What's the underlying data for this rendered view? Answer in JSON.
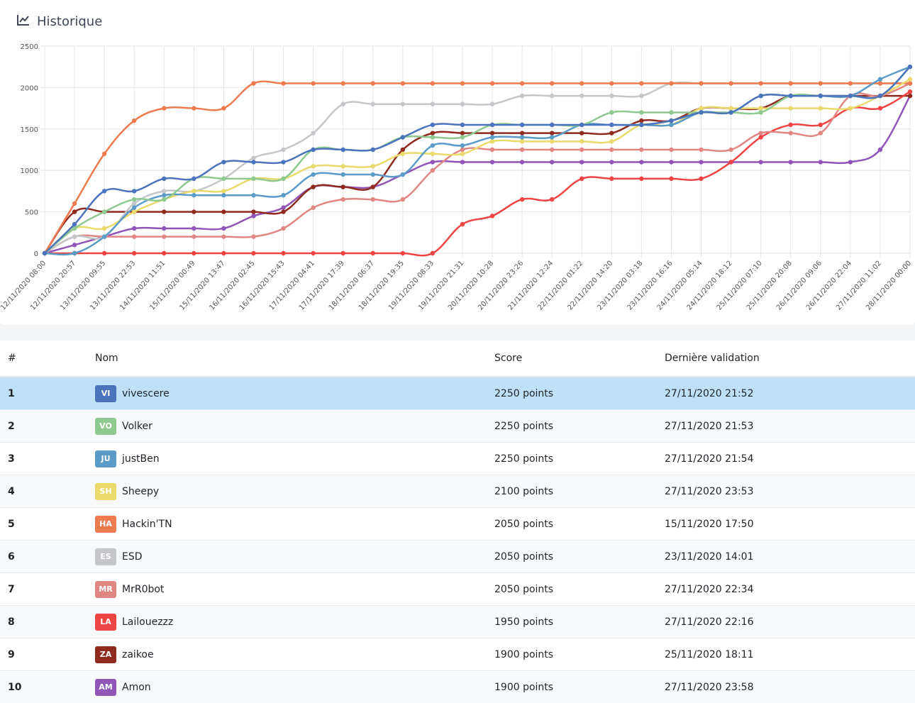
{
  "header": {
    "title": "Historique",
    "icon": "line-chart-icon"
  },
  "chart_data": {
    "type": "line",
    "ylim": [
      0,
      2500
    ],
    "yticks": [
      "0",
      "500",
      "1000",
      "1500",
      "2000",
      "2500"
    ],
    "grid": true,
    "categories": [
      "12/11/2020 08:00",
      "12/11/2020 20:57",
      "13/11/2020 09:55",
      "13/11/2020 22:53",
      "14/11/2020 11:51",
      "15/11/2020 00:49",
      "15/11/2020 13:47",
      "16/11/2020 02:45",
      "16/11/2020 15:43",
      "17/11/2020 04:41",
      "17/11/2020 17:39",
      "18/11/2020 06:37",
      "18/11/2020 19:35",
      "19/11/2020 08:33",
      "19/11/2020 21:31",
      "20/11/2020 10:28",
      "20/11/2020 23:26",
      "21/11/2020 12:24",
      "22/11/2020 01:22",
      "22/11/2020 14:20",
      "23/11/2020 03:18",
      "23/11/2020 16:16",
      "24/11/2020 05:14",
      "24/11/2020 18:12",
      "25/11/2020 07:10",
      "25/11/2020 20:08",
      "26/11/2020 09:06",
      "26/11/2020 22:04",
      "27/11/2020 11:02",
      "28/11/2020 00:00"
    ],
    "series": [
      {
        "name": "vivescere",
        "color": "#4b74bd",
        "values": [
          0,
          350,
          750,
          750,
          900,
          900,
          1100,
          1100,
          1100,
          1250,
          1250,
          1250,
          1400,
          1550,
          1550,
          1550,
          1550,
          1550,
          1550,
          1550,
          1550,
          1600,
          1700,
          1700,
          1900,
          1900,
          1900,
          1900,
          1900,
          2250
        ]
      },
      {
        "name": "Volker",
        "color": "#8ec98f",
        "values": [
          0,
          300,
          500,
          650,
          650,
          900,
          900,
          900,
          900,
          1250,
          1250,
          1250,
          1400,
          1400,
          1400,
          1550,
          1550,
          1550,
          1550,
          1700,
          1700,
          1700,
          1700,
          1700,
          1700,
          1900,
          1900,
          1900,
          1900,
          2250
        ]
      },
      {
        "name": "justBen",
        "color": "#5a9bc8",
        "values": [
          0,
          0,
          200,
          550,
          700,
          700,
          700,
          700,
          700,
          950,
          950,
          950,
          950,
          1300,
          1300,
          1400,
          1400,
          1400,
          1550,
          1550,
          1550,
          1550,
          1700,
          1700,
          1900,
          1900,
          1900,
          1900,
          2100,
          2250
        ]
      },
      {
        "name": "Sheepy",
        "color": "#ead96b",
        "values": [
          0,
          300,
          300,
          500,
          650,
          750,
          750,
          900,
          900,
          1050,
          1050,
          1050,
          1200,
          1200,
          1200,
          1350,
          1350,
          1350,
          1350,
          1350,
          1550,
          1550,
          1750,
          1750,
          1750,
          1750,
          1750,
          1750,
          1900,
          2100
        ]
      },
      {
        "name": "Hackin'TN",
        "color": "#ee7a4f",
        "values": [
          0,
          600,
          1200,
          1600,
          1750,
          1750,
          1750,
          2050,
          2050,
          2050,
          2050,
          2050,
          2050,
          2050,
          2050,
          2050,
          2050,
          2050,
          2050,
          2050,
          2050,
          2050,
          2050,
          2050,
          2050,
          2050,
          2050,
          2050,
          2050,
          2050
        ]
      },
      {
        "name": "ESD",
        "color": "#c4c6ca",
        "values": [
          0,
          200,
          200,
          600,
          750,
          750,
          900,
          1150,
          1250,
          1450,
          1800,
          1800,
          1800,
          1800,
          1800,
          1800,
          1900,
          1900,
          1900,
          1900,
          1900,
          2050,
          2050,
          2050,
          2050,
          2050,
          2050,
          2050,
          2050,
          2050
        ]
      },
      {
        "name": "MrR0bot",
        "color": "#e08784",
        "values": [
          0,
          200,
          200,
          200,
          200,
          200,
          200,
          200,
          300,
          550,
          650,
          650,
          650,
          1000,
          1250,
          1250,
          1250,
          1250,
          1250,
          1250,
          1250,
          1250,
          1250,
          1250,
          1450,
          1450,
          1450,
          1900,
          1900,
          2050
        ]
      },
      {
        "name": "Lailouezzz",
        "color": "#ef4444",
        "values": [
          0,
          0,
          0,
          0,
          0,
          0,
          0,
          0,
          0,
          0,
          0,
          0,
          0,
          0,
          350,
          450,
          650,
          650,
          900,
          900,
          900,
          900,
          900,
          1100,
          1400,
          1550,
          1550,
          1750,
          1750,
          1950
        ]
      },
      {
        "name": "zaikoe",
        "color": "#8f2a1e",
        "values": [
          0,
          500,
          500,
          500,
          500,
          500,
          500,
          500,
          500,
          800,
          800,
          800,
          1250,
          1450,
          1450,
          1450,
          1450,
          1450,
          1450,
          1450,
          1600,
          1600,
          1750,
          1750,
          1750,
          1900,
          1900,
          1900,
          1900,
          1900
        ]
      },
      {
        "name": "Amon",
        "color": "#9155b8",
        "values": [
          0,
          100,
          200,
          300,
          300,
          300,
          300,
          450,
          550,
          800,
          800,
          800,
          950,
          1100,
          1100,
          1100,
          1100,
          1100,
          1100,
          1100,
          1100,
          1100,
          1100,
          1100,
          1100,
          1100,
          1100,
          1100,
          1250,
          1900
        ]
      }
    ]
  },
  "table": {
    "columns": [
      "#",
      "Nom",
      "Score",
      "Dernière validation"
    ],
    "rows": [
      {
        "rank": "1",
        "initials": "VI",
        "color": "#4b74bd",
        "name": "vivescere",
        "score": "2250 points",
        "date": "27/11/2020 21:52"
      },
      {
        "rank": "2",
        "initials": "VO",
        "color": "#8ec98f",
        "name": "Volker",
        "score": "2250 points",
        "date": "27/11/2020 21:53"
      },
      {
        "rank": "3",
        "initials": "JU",
        "color": "#5a9bc8",
        "name": "justBen",
        "score": "2250 points",
        "date": "27/11/2020 21:54"
      },
      {
        "rank": "4",
        "initials": "SH",
        "color": "#ead96b",
        "name": "Sheepy",
        "score": "2100 points",
        "date": "27/11/2020 23:53"
      },
      {
        "rank": "5",
        "initials": "HA",
        "color": "#ee7a4f",
        "name": "Hackin'TN",
        "score": "2050 points",
        "date": "15/11/2020 17:50"
      },
      {
        "rank": "6",
        "initials": "ES",
        "color": "#c4c6ca",
        "name": "ESD",
        "score": "2050 points",
        "date": "23/11/2020 14:01"
      },
      {
        "rank": "7",
        "initials": "MR",
        "color": "#e08784",
        "name": "MrR0bot",
        "score": "2050 points",
        "date": "27/11/2020 22:34"
      },
      {
        "rank": "8",
        "initials": "LA",
        "color": "#ef4444",
        "name": "Lailouezzz",
        "score": "1950 points",
        "date": "27/11/2020 22:16"
      },
      {
        "rank": "9",
        "initials": "ZA",
        "color": "#8f2a1e",
        "name": "zaikoe",
        "score": "1900 points",
        "date": "25/11/2020 18:11"
      },
      {
        "rank": "10",
        "initials": "AM",
        "color": "#9155b8",
        "name": "Amon",
        "score": "1900 points",
        "date": "27/11/2020 23:58"
      }
    ]
  }
}
